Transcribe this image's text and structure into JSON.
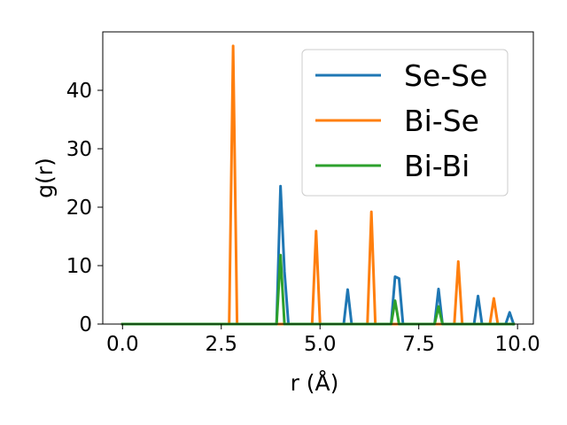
{
  "chart_data": {
    "type": "line",
    "xlabel": "r (Å)",
    "ylabel": "g(r)",
    "xlim": [
      -0.5,
      10.4
    ],
    "ylim": [
      0,
      50
    ],
    "xticks": [
      0.0,
      2.5,
      5.0,
      7.5,
      10.0
    ],
    "xtick_labels": [
      "0.0",
      "2.5",
      "5.0",
      "7.5",
      "10.0"
    ],
    "yticks": [
      0,
      10,
      20,
      30,
      40
    ],
    "ytick_labels": [
      "0",
      "10",
      "20",
      "30",
      "40"
    ],
    "grid": false,
    "legend_position": "top-right",
    "series": [
      {
        "name": "Se-Se",
        "color": "#1f77b4",
        "x": [
          0.0,
          3.9,
          4.0,
          4.1,
          4.2,
          5.6,
          5.7,
          5.8,
          6.8,
          6.9,
          7.0,
          7.1,
          7.9,
          8.0,
          8.1,
          8.9,
          9.0,
          9.1,
          9.7,
          9.8,
          9.9
        ],
        "y": [
          0,
          0,
          23.6,
          9.0,
          0,
          0,
          5.9,
          0,
          0,
          8.1,
          7.8,
          0,
          0,
          6.0,
          0,
          0,
          4.8,
          0,
          0,
          2.0,
          0
        ]
      },
      {
        "name": "Bi-Se",
        "color": "#ff7f0e",
        "x": [
          0.0,
          2.7,
          2.8,
          2.9,
          4.8,
          4.9,
          5.0,
          6.2,
          6.3,
          6.4,
          8.4,
          8.5,
          8.6,
          9.3,
          9.4,
          9.5,
          9.9
        ],
        "y": [
          0,
          0,
          47.6,
          0,
          0,
          15.9,
          0,
          0,
          19.2,
          0,
          0,
          10.7,
          0,
          0,
          4.4,
          0,
          0
        ]
      },
      {
        "name": "Bi-Bi",
        "color": "#2ca02c",
        "x": [
          0.0,
          3.9,
          4.0,
          4.1,
          6.8,
          6.9,
          7.0,
          7.9,
          8.0,
          8.1,
          9.9
        ],
        "y": [
          0,
          0,
          11.8,
          0,
          0,
          4.0,
          0,
          0,
          3.0,
          0,
          0
        ]
      }
    ]
  }
}
